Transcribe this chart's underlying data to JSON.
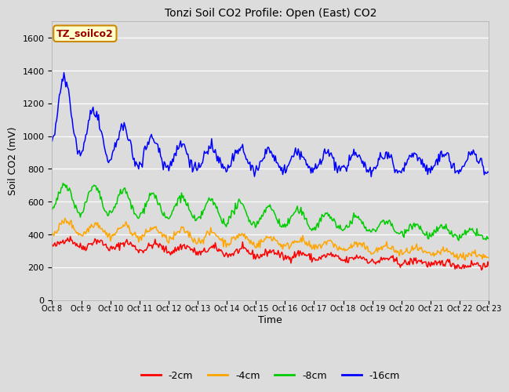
{
  "title": "Tonzi Soil CO2 Profile: Open (East) CO2",
  "xlabel": "Time",
  "ylabel": "Soil CO2 (mV)",
  "ylim": [
    0,
    1700
  ],
  "yticks": [
    0,
    200,
    400,
    600,
    800,
    1000,
    1200,
    1400,
    1600
  ],
  "bg_color": "#dcdcdc",
  "plot_bg_color": "#dcdcdc",
  "annotation_text": "TZ_soilco2",
  "annotation_bg": "#ffffcc",
  "annotation_border": "#cc8800",
  "annotation_text_color": "#990000",
  "x_tick_labels": [
    "Oct 8",
    "Oct 9",
    "Oct 10",
    "Oct 11",
    "Oct 12",
    "Oct 13",
    "Oct 14",
    "Oct 15",
    "Oct 16",
    "Oct 17",
    "Oct 18",
    "Oct 19",
    "Oct 20",
    "Oct 21",
    "Oct 22",
    "Oct 23"
  ],
  "series": [
    {
      "label": "-2cm",
      "color": "#ff0000"
    },
    {
      "label": "-4cm",
      "color": "#ffa500"
    },
    {
      "label": "-8cm",
      "color": "#00cc00"
    },
    {
      "label": "-16cm",
      "color": "#0000ff"
    }
  ],
  "n_points": 480,
  "seed": 42
}
